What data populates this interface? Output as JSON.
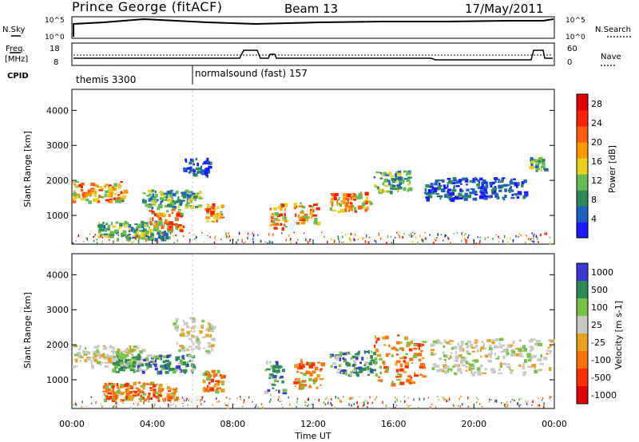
{
  "header": {
    "station": "Prince George (fitACF)",
    "beam": "Beam 13",
    "date": "17/May/2011"
  },
  "panel_labels": {
    "nsky": "N.Sky",
    "nsearch": "N.Search",
    "freq_top": "Freq.",
    "freq_unit": "[MHz]",
    "nave": "Nave",
    "cpid": "CPID"
  },
  "small_ticks": {
    "nsky_top": "10^5",
    "nsky_bottom": "10^0",
    "nsearch_top": "10^5",
    "nsearch_bottom": "10^0",
    "freq_top": "18",
    "freq_bottom": "8",
    "nave_top": "60",
    "nave_bottom": "0"
  },
  "cpid": [
    {
      "label": "themis 3300",
      "start_hour": 0,
      "end_hour": 6
    },
    {
      "label": "normalsound (fast) 157",
      "start_hour": 6,
      "end_hour": 24
    }
  ],
  "colors": {
    "power_scale": [
      "#1a1aff",
      "#2060c0",
      "#2e8b57",
      "#66bb55",
      "#e8d020",
      "#ff9900",
      "#ff6010",
      "#ff2000",
      "#e00000"
    ],
    "velocity_scale": [
      "#3a3ad0",
      "#2e8b57",
      "#77c244",
      "#c8c8c4",
      "#e8a020",
      "#ff7010",
      "#ff3000",
      "#e00000"
    ]
  },
  "chart_data": [
    {
      "type": "heatmap",
      "ylabel": "Slant Range [km]",
      "ylim": [
        180,
        4600
      ],
      "yticks": [
        "1000",
        "2000",
        "3000",
        "4000"
      ],
      "xlim": [
        0,
        24
      ],
      "colorbar": {
        "label": "Power [dB]",
        "ticks": [
          "4",
          "8",
          "12",
          "16",
          "20",
          "24",
          "28"
        ],
        "range": [
          0,
          30
        ]
      },
      "echo_regions": [
        {
          "t_start": 0.0,
          "t_end": 2.6,
          "range_center": 1700,
          "range_width": 280,
          "level": "strong"
        },
        {
          "t_start": 1.2,
          "t_end": 4.8,
          "range_center": 600,
          "range_width": 250,
          "level": "medium"
        },
        {
          "t_start": 3.8,
          "t_end": 5.4,
          "range_center": 900,
          "range_width": 300,
          "level": "strong"
        },
        {
          "t_start": 3.5,
          "t_end": 6.4,
          "range_center": 1500,
          "range_width": 250,
          "level": "medium"
        },
        {
          "t_start": 5.5,
          "t_end": 6.8,
          "range_center": 2400,
          "range_width": 250,
          "level": "weak"
        },
        {
          "t_start": 6.6,
          "t_end": 7.5,
          "range_center": 1100,
          "range_width": 250,
          "level": "strong"
        },
        {
          "t_start": 9.8,
          "t_end": 10.6,
          "range_center": 1000,
          "range_width": 350,
          "level": "strong"
        },
        {
          "t_start": 11.0,
          "t_end": 12.2,
          "range_center": 1100,
          "range_width": 300,
          "level": "strong"
        },
        {
          "t_start": 12.8,
          "t_end": 14.8,
          "range_center": 1400,
          "range_width": 280,
          "level": "strong"
        },
        {
          "t_start": 15.0,
          "t_end": 16.8,
          "range_center": 2000,
          "range_width": 300,
          "level": "medium"
        },
        {
          "t_start": 17.5,
          "t_end": 22.5,
          "range_center": 1800,
          "range_width": 300,
          "level": "weak"
        },
        {
          "t_start": 22.7,
          "t_end": 23.5,
          "range_center": 2500,
          "range_width": 200,
          "level": "medium"
        }
      ]
    },
    {
      "type": "heatmap",
      "ylabel": "Slant Range [km]",
      "ylim": [
        180,
        4600
      ],
      "yticks": [
        "1000",
        "2000",
        "3000",
        "4000"
      ],
      "xlabel": "Time UT",
      "xlim": [
        0,
        24
      ],
      "xticks": [
        "00:00",
        "04:00",
        "08:00",
        "12:00",
        "16:00",
        "20:00",
        "00:00"
      ],
      "colorbar": {
        "label": "Velocity [m s-1]",
        "ticks": [
          "1000",
          "500",
          "100",
          "25",
          "-25",
          "-100",
          "-500",
          "-1000"
        ]
      },
      "echo_regions": [
        {
          "t_start": 0.0,
          "t_end": 3.5,
          "range_center": 1700,
          "range_width": 300,
          "level": "neutral"
        },
        {
          "t_start": 2.0,
          "t_end": 6.0,
          "range_center": 1500,
          "range_width": 250,
          "level": "positive"
        },
        {
          "t_start": 1.5,
          "t_end": 5.2,
          "range_center": 700,
          "range_width": 250,
          "level": "negative"
        },
        {
          "t_start": 5.0,
          "t_end": 7.0,
          "range_center": 2300,
          "range_width": 500,
          "level": "neutral"
        },
        {
          "t_start": 6.5,
          "t_end": 7.5,
          "range_center": 1000,
          "range_width": 300,
          "level": "negative"
        },
        {
          "t_start": 9.5,
          "t_end": 10.5,
          "range_center": 1100,
          "range_width": 500,
          "level": "positive"
        },
        {
          "t_start": 11.0,
          "t_end": 12.4,
          "range_center": 1200,
          "range_width": 400,
          "level": "negative"
        },
        {
          "t_start": 12.8,
          "t_end": 15.0,
          "range_center": 1500,
          "range_width": 350,
          "level": "positive"
        },
        {
          "t_start": 15.0,
          "t_end": 17.5,
          "range_center": 1600,
          "range_width": 700,
          "level": "negative"
        },
        {
          "t_start": 17.8,
          "t_end": 23.8,
          "range_center": 1700,
          "range_width": 500,
          "level": "neutral"
        }
      ]
    }
  ]
}
